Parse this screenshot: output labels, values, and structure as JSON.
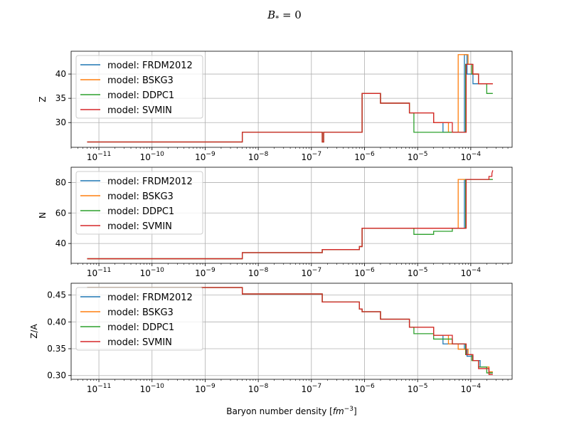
{
  "figure": {
    "suptitle": "B_* = 0",
    "xlabel": "Baryon number density [fm^-3]"
  },
  "chart_data": [
    {
      "type": "line",
      "panel": "Z",
      "ylabel": "Z",
      "xscale": "log",
      "xlim": [
        3e-12,
        0.0006
      ],
      "ylim": [
        24.9,
        44.7
      ],
      "yticks": [
        30,
        35,
        40
      ],
      "grid": true,
      "legend_position": "upper-left",
      "series": [
        {
          "name": "model: FRDM2012",
          "color": "#1f77b4",
          "x": [
            6e-12,
            5e-09,
            5e-09,
            1.6e-07,
            1.6e-07,
            1.7e-07,
            1.7e-07,
            9e-07,
            9e-07,
            2e-06,
            2e-06,
            7e-06,
            7e-06,
            2e-05,
            2e-05,
            3e-05,
            3e-05,
            7.6e-05,
            7.6e-05,
            8.5e-05,
            8.5e-05,
            0.00011,
            0.00011,
            0.00015,
            0.00015,
            0.00026
          ],
          "y": [
            26,
            26,
            28,
            28,
            26,
            26,
            28,
            28,
            36,
            36,
            34,
            34,
            32,
            32,
            30,
            30,
            28,
            28,
            44,
            44,
            40,
            40,
            38,
            38,
            38,
            38
          ]
        },
        {
          "name": "model: BSKG3",
          "color": "#ff7f0e",
          "x": [
            6e-12,
            5e-09,
            5e-09,
            1.6e-07,
            1.6e-07,
            1.7e-07,
            1.7e-07,
            9e-07,
            9e-07,
            2e-06,
            2e-06,
            7e-06,
            7e-06,
            2e-05,
            2e-05,
            3.8e-05,
            3.8e-05,
            5.8e-05,
            5.8e-05,
            8.9e-05,
            8.9e-05,
            0.000105,
            0.000105,
            0.00014,
            0.00014,
            0.00026
          ],
          "y": [
            26,
            26,
            28,
            28,
            26,
            26,
            28,
            28,
            36,
            36,
            34,
            34,
            32,
            32,
            30,
            30,
            28,
            28,
            44,
            44,
            42,
            42,
            40,
            40,
            38,
            38
          ]
        },
        {
          "name": "model: DDPC1",
          "color": "#2ca02c",
          "x": [
            6e-12,
            5e-09,
            5e-09,
            1.6e-07,
            1.6e-07,
            1.7e-07,
            1.7e-07,
            9e-07,
            9e-07,
            2e-06,
            2e-06,
            7e-06,
            7e-06,
            8.5e-06,
            8.5e-06,
            8e-05,
            8e-05,
            0.000105,
            0.000105,
            0.00014,
            0.00014,
            0.0002,
            0.0002,
            0.00026
          ],
          "y": [
            26,
            26,
            28,
            28,
            26,
            26,
            28,
            28,
            36,
            36,
            34,
            34,
            32,
            32,
            28,
            28,
            42,
            42,
            40,
            40,
            38,
            38,
            36,
            36
          ]
        },
        {
          "name": "model: SVMIN",
          "color": "#d62728",
          "x": [
            6e-12,
            5e-09,
            5e-09,
            1.6e-07,
            1.6e-07,
            1.7e-07,
            1.7e-07,
            9e-07,
            9e-07,
            2e-06,
            2e-06,
            7e-06,
            7e-06,
            2e-05,
            2e-05,
            4.5e-05,
            4.5e-05,
            8.2e-05,
            8.2e-05,
            0.00011,
            0.00011,
            0.00014,
            0.00014,
            0.00026
          ],
          "y": [
            26,
            26,
            28,
            28,
            26,
            26,
            28,
            28,
            36,
            36,
            34,
            34,
            32,
            32,
            30,
            30,
            28,
            28,
            42,
            42,
            40,
            40,
            38,
            38
          ]
        }
      ]
    },
    {
      "type": "line",
      "panel": "N",
      "ylabel": "N",
      "xscale": "log",
      "xlim": [
        3e-12,
        0.0006
      ],
      "ylim": [
        27,
        90
      ],
      "yticks": [
        40,
        60,
        80
      ],
      "grid": true,
      "legend_position": "upper-left",
      "series": [
        {
          "name": "model: FRDM2012",
          "color": "#1f77b4",
          "x": [
            6e-12,
            5e-09,
            5e-09,
            1.6e-07,
            1.6e-07,
            8e-07,
            8e-07,
            9e-07,
            9e-07,
            7.6e-05,
            7.6e-05,
            0.00026
          ],
          "y": [
            30,
            30,
            34,
            34,
            36,
            36,
            38,
            38,
            50,
            50,
            82,
            82
          ]
        },
        {
          "name": "model: BSKG3",
          "color": "#ff7f0e",
          "x": [
            6e-12,
            5e-09,
            5e-09,
            1.6e-07,
            1.6e-07,
            8e-07,
            8e-07,
            9e-07,
            9e-07,
            5.8e-05,
            5.8e-05,
            0.00026
          ],
          "y": [
            30,
            30,
            34,
            34,
            36,
            36,
            38,
            38,
            50,
            50,
            82,
            82
          ]
        },
        {
          "name": "model: DDPC1",
          "color": "#2ca02c",
          "x": [
            6e-12,
            5e-09,
            5e-09,
            1.6e-07,
            1.6e-07,
            8e-07,
            8e-07,
            9e-07,
            9e-07,
            8.5e-06,
            8.5e-06,
            2e-05,
            2e-05,
            4.5e-05,
            4.5e-05,
            8e-05,
            8e-05,
            0.00026
          ],
          "y": [
            30,
            30,
            34,
            34,
            36,
            36,
            38,
            38,
            50,
            50,
            46,
            46,
            48,
            48,
            50,
            50,
            82,
            82
          ]
        },
        {
          "name": "model: SVMIN",
          "color": "#d62728",
          "x": [
            6e-12,
            5e-09,
            5e-09,
            1.6e-07,
            1.6e-07,
            8e-07,
            8e-07,
            9e-07,
            9e-07,
            8.2e-05,
            8.2e-05,
            0.00022,
            0.00022,
            0.00025,
            0.00025,
            0.00026
          ],
          "y": [
            30,
            30,
            34,
            34,
            36,
            36,
            38,
            38,
            50,
            50,
            82,
            82,
            84,
            84,
            86,
            88
          ]
        }
      ]
    },
    {
      "type": "line",
      "panel": "Z/A",
      "ylabel": "Z/A",
      "xscale": "log",
      "xlim": [
        3e-12,
        0.0006
      ],
      "ylim": [
        0.293,
        0.472
      ],
      "yticks": [
        0.3,
        0.35,
        0.4,
        0.45
      ],
      "grid": true,
      "legend_position": "upper-left",
      "series": [
        {
          "name": "model: FRDM2012",
          "color": "#1f77b4",
          "x": [
            6e-12,
            5e-09,
            5e-09,
            1.6e-07,
            1.6e-07,
            8e-07,
            8e-07,
            9e-07,
            9e-07,
            2e-06,
            2e-06,
            7e-06,
            7e-06,
            2e-05,
            2e-05,
            3e-05,
            3e-05,
            7.6e-05,
            7.6e-05,
            8.5e-05,
            8.5e-05,
            0.00011,
            0.00011,
            0.00015,
            0.00015,
            0.00022,
            0.00022,
            0.00026
          ],
          "y": [
            0.464,
            0.464,
            0.452,
            0.452,
            0.437,
            0.437,
            0.424,
            0.424,
            0.419,
            0.419,
            0.405,
            0.405,
            0.39,
            0.39,
            0.375,
            0.375,
            0.359,
            0.359,
            0.349,
            0.349,
            0.336,
            0.336,
            0.328,
            0.328,
            0.316,
            0.316,
            0.305,
            0.305
          ]
        },
        {
          "name": "model: BSKG3",
          "color": "#ff7f0e",
          "x": [
            6e-12,
            5e-09,
            5e-09,
            1.6e-07,
            1.6e-07,
            8e-07,
            8e-07,
            9e-07,
            9e-07,
            2e-06,
            2e-06,
            7e-06,
            7e-06,
            2e-05,
            2e-05,
            3.8e-05,
            3.8e-05,
            5.8e-05,
            5.8e-05,
            8.9e-05,
            8.9e-05,
            0.000105,
            0.000105,
            0.00014,
            0.00014,
            0.00022,
            0.00022,
            0.00026
          ],
          "y": [
            0.464,
            0.464,
            0.452,
            0.452,
            0.437,
            0.437,
            0.424,
            0.424,
            0.419,
            0.419,
            0.405,
            0.405,
            0.39,
            0.39,
            0.375,
            0.375,
            0.359,
            0.359,
            0.349,
            0.349,
            0.339,
            0.339,
            0.328,
            0.328,
            0.316,
            0.316,
            0.307,
            0.307
          ]
        },
        {
          "name": "model: DDPC1",
          "color": "#2ca02c",
          "x": [
            6e-12,
            5e-09,
            5e-09,
            1.6e-07,
            1.6e-07,
            8e-07,
            8e-07,
            9e-07,
            9e-07,
            2e-06,
            2e-06,
            7e-06,
            7e-06,
            8.5e-06,
            8.5e-06,
            2e-05,
            2e-05,
            4.5e-05,
            4.5e-05,
            8e-05,
            8e-05,
            0.000105,
            0.000105,
            0.00014,
            0.00014,
            0.0002,
            0.0002,
            0.00026
          ],
          "y": [
            0.464,
            0.464,
            0.452,
            0.452,
            0.437,
            0.437,
            0.424,
            0.424,
            0.419,
            0.419,
            0.405,
            0.405,
            0.39,
            0.39,
            0.378,
            0.378,
            0.368,
            0.368,
            0.359,
            0.359,
            0.339,
            0.339,
            0.328,
            0.328,
            0.316,
            0.316,
            0.305,
            0.305
          ]
        },
        {
          "name": "model: SVMIN",
          "color": "#d62728",
          "x": [
            6e-12,
            5e-09,
            5e-09,
            1.6e-07,
            1.6e-07,
            8e-07,
            8e-07,
            9e-07,
            9e-07,
            2e-06,
            2e-06,
            7e-06,
            7e-06,
            2e-05,
            2e-05,
            4.5e-05,
            4.5e-05,
            8.2e-05,
            8.2e-05,
            0.00011,
            0.00011,
            0.00014,
            0.00014,
            0.00022,
            0.00022,
            0.00026
          ],
          "y": [
            0.464,
            0.464,
            0.452,
            0.452,
            0.437,
            0.437,
            0.424,
            0.424,
            0.419,
            0.419,
            0.405,
            0.405,
            0.39,
            0.39,
            0.375,
            0.375,
            0.359,
            0.359,
            0.339,
            0.339,
            0.328,
            0.328,
            0.313,
            0.313,
            0.302,
            0.302
          ]
        }
      ]
    }
  ]
}
